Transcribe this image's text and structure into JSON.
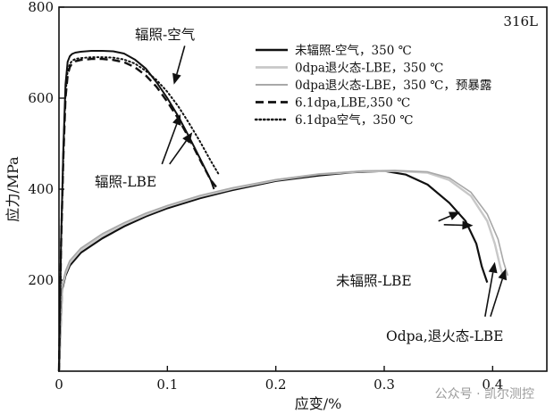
{
  "chart_data": {
    "type": "line",
    "title": "",
    "xlabel": "应变/%",
    "ylabel": "应力/MPa",
    "xlim": [
      0,
      0.45
    ],
    "ylim": [
      0,
      800
    ],
    "x_ticks": [
      0,
      0.1,
      0.2,
      0.3,
      0.4
    ],
    "x_tick_labels": [
      "0",
      "0.1",
      "0.2",
      "0.3",
      "0.4"
    ],
    "y_ticks": [
      200,
      400,
      600,
      800
    ],
    "y_tick_labels": [
      "200",
      "400",
      "600",
      "800"
    ],
    "grid": false,
    "legend_position": "top-right",
    "material_label": "316L",
    "series": [
      {
        "name": "未辐照-空气，350 ℃",
        "color": "#111111",
        "dash": "solid",
        "width": 2.2,
        "x": [
          0,
          0.003,
          0.006,
          0.01,
          0.02,
          0.04,
          0.06,
          0.08,
          0.1,
          0.13,
          0.16,
          0.2,
          0.24,
          0.27,
          0.3,
          0.32,
          0.34,
          0.36,
          0.375,
          0.385,
          0.39,
          0.395
        ],
        "y": [
          0,
          180,
          210,
          232,
          260,
          292,
          318,
          340,
          358,
          380,
          398,
          418,
          430,
          437,
          440,
          432,
          410,
          370,
          330,
          280,
          230,
          195
        ]
      },
      {
        "name": "0dpa退火态-LBE，350 ℃",
        "color": "#c8c8c8",
        "dash": "solid",
        "width": 2.4,
        "x": [
          0,
          0.003,
          0.006,
          0.01,
          0.02,
          0.04,
          0.06,
          0.08,
          0.1,
          0.13,
          0.16,
          0.2,
          0.24,
          0.28,
          0.31,
          0.34,
          0.36,
          0.38,
          0.395,
          0.402,
          0.407,
          0.41
        ],
        "y": [
          0,
          185,
          215,
          238,
          266,
          298,
          323,
          344,
          362,
          384,
          401,
          420,
          433,
          439,
          440,
          436,
          420,
          385,
          330,
          280,
          230,
          205
        ]
      },
      {
        "name": "0dpa退火态-LBE，350 ℃，预暴露",
        "color": "#a8a8a8",
        "dash": "solid",
        "width": 1.6,
        "x": [
          0,
          0.003,
          0.006,
          0.01,
          0.02,
          0.04,
          0.06,
          0.08,
          0.1,
          0.13,
          0.16,
          0.2,
          0.24,
          0.28,
          0.31,
          0.34,
          0.36,
          0.38,
          0.395,
          0.405,
          0.41,
          0.414
        ],
        "y": [
          0,
          190,
          220,
          243,
          270,
          302,
          326,
          347,
          364,
          386,
          403,
          421,
          433,
          440,
          441,
          438,
          425,
          393,
          345,
          290,
          240,
          210
        ]
      },
      {
        "name": "6.1dpa,LBE,350 ℃",
        "color": "#111111",
        "dash": "dashed",
        "width": 2.4,
        "x": [
          0,
          0.002,
          0.004,
          0.006,
          0.008,
          0.01,
          0.012,
          0.015,
          0.02,
          0.03,
          0.04,
          0.05,
          0.06,
          0.07,
          0.08,
          0.09,
          0.1,
          0.11,
          0.12,
          0.13,
          0.14,
          0.145
        ],
        "y": [
          0,
          280,
          470,
          600,
          650,
          668,
          676,
          681,
          684,
          686,
          686,
          684,
          679,
          668,
          650,
          625,
          592,
          555,
          512,
          465,
          420,
          405
        ]
      },
      {
        "name": "6.1dpa空气，350 ℃",
        "color": "#111111",
        "dash": "dotted",
        "width": 2.0,
        "x": [
          0,
          0.002,
          0.004,
          0.006,
          0.008,
          0.01,
          0.012,
          0.015,
          0.02,
          0.03,
          0.04,
          0.05,
          0.06,
          0.07,
          0.08,
          0.09,
          0.1,
          0.11,
          0.12,
          0.13,
          0.14,
          0.148
        ],
        "y": [
          0,
          285,
          475,
          610,
          660,
          675,
          682,
          686,
          688,
          690,
          690,
          689,
          685,
          676,
          660,
          640,
          614,
          582,
          545,
          505,
          462,
          430
        ]
      },
      {
        "name": "辐照-空气",
        "color": "#111111",
        "dash": "solid",
        "width": 2.0,
        "x": [
          0,
          0.002,
          0.004,
          0.006,
          0.008,
          0.01,
          0.012,
          0.015,
          0.02,
          0.03,
          0.04,
          0.05,
          0.06,
          0.07,
          0.08,
          0.09,
          0.1,
          0.11,
          0.12,
          0.13,
          0.14,
          0.143
        ],
        "y": [
          0,
          290,
          490,
          630,
          680,
          692,
          697,
          700,
          702,
          704,
          704,
          703,
          698,
          685,
          665,
          635,
          600,
          560,
          515,
          468,
          420,
          400
        ]
      }
    ],
    "annotations": [
      {
        "text": "辐照-空气",
        "arrows": [
          {
            "from": [
              0.116,
              715
            ],
            "to": [
              0.106,
              630
            ]
          }
        ]
      },
      {
        "text": "辐照-LBE",
        "arrows": [
          {
            "from": [
              0.095,
              455
            ],
            "to": [
              0.112,
              565
            ]
          },
          {
            "from": [
              0.102,
              455
            ],
            "to": [
              0.123,
              525
            ]
          }
        ]
      },
      {
        "text": "未辐照-LBE",
        "arrows": [
          {
            "from": [
              0.35,
              330
            ],
            "to": [
              0.37,
              350
            ]
          },
          {
            "from": [
              0.355,
              322
            ],
            "to": [
              0.382,
              320
            ]
          }
        ]
      },
      {
        "text": "Odpa,退火态-LBE",
        "arrows": [
          {
            "from": [
              0.393,
              120
            ],
            "to": [
              0.402,
              240
            ]
          },
          {
            "from": [
              0.398,
              120
            ],
            "to": [
              0.412,
              225
            ]
          }
        ]
      }
    ]
  },
  "watermark": "公众号 · 凯尔测控"
}
